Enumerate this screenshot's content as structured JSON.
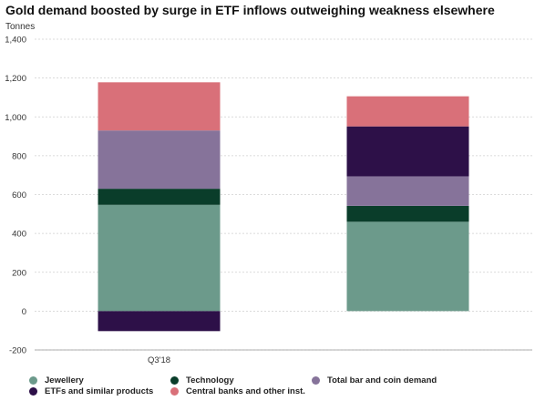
{
  "chart_data": {
    "type": "bar",
    "stacked": true,
    "title": "Gold demand boosted by surge in ETF inflows outweighing weakness elsewhere",
    "ylabel": "Tonnes",
    "xlabel": "",
    "ylim": [
      -200,
      1400
    ],
    "yticks": [
      -200,
      0,
      200,
      400,
      600,
      800,
      1000,
      1200,
      1400
    ],
    "grid": true,
    "legend_position": "bottom",
    "categories": [
      "Q3'18",
      ""
    ],
    "series": [
      {
        "name": "Jewellery",
        "color": "#6c9a8b",
        "values": [
          547,
          460
        ]
      },
      {
        "name": "Technology",
        "color": "#0a3d2a",
        "values": [
          83,
          82
        ]
      },
      {
        "name": "Total bar and coin demand",
        "color": "#86739a",
        "values": [
          300,
          152
        ]
      },
      {
        "name": "ETFs and similar products",
        "color": "#2d1048",
        "values": [
          -103,
          257
        ]
      },
      {
        "name": "Central banks and other inst.",
        "color": "#d97079",
        "values": [
          248,
          155
        ]
      }
    ]
  }
}
